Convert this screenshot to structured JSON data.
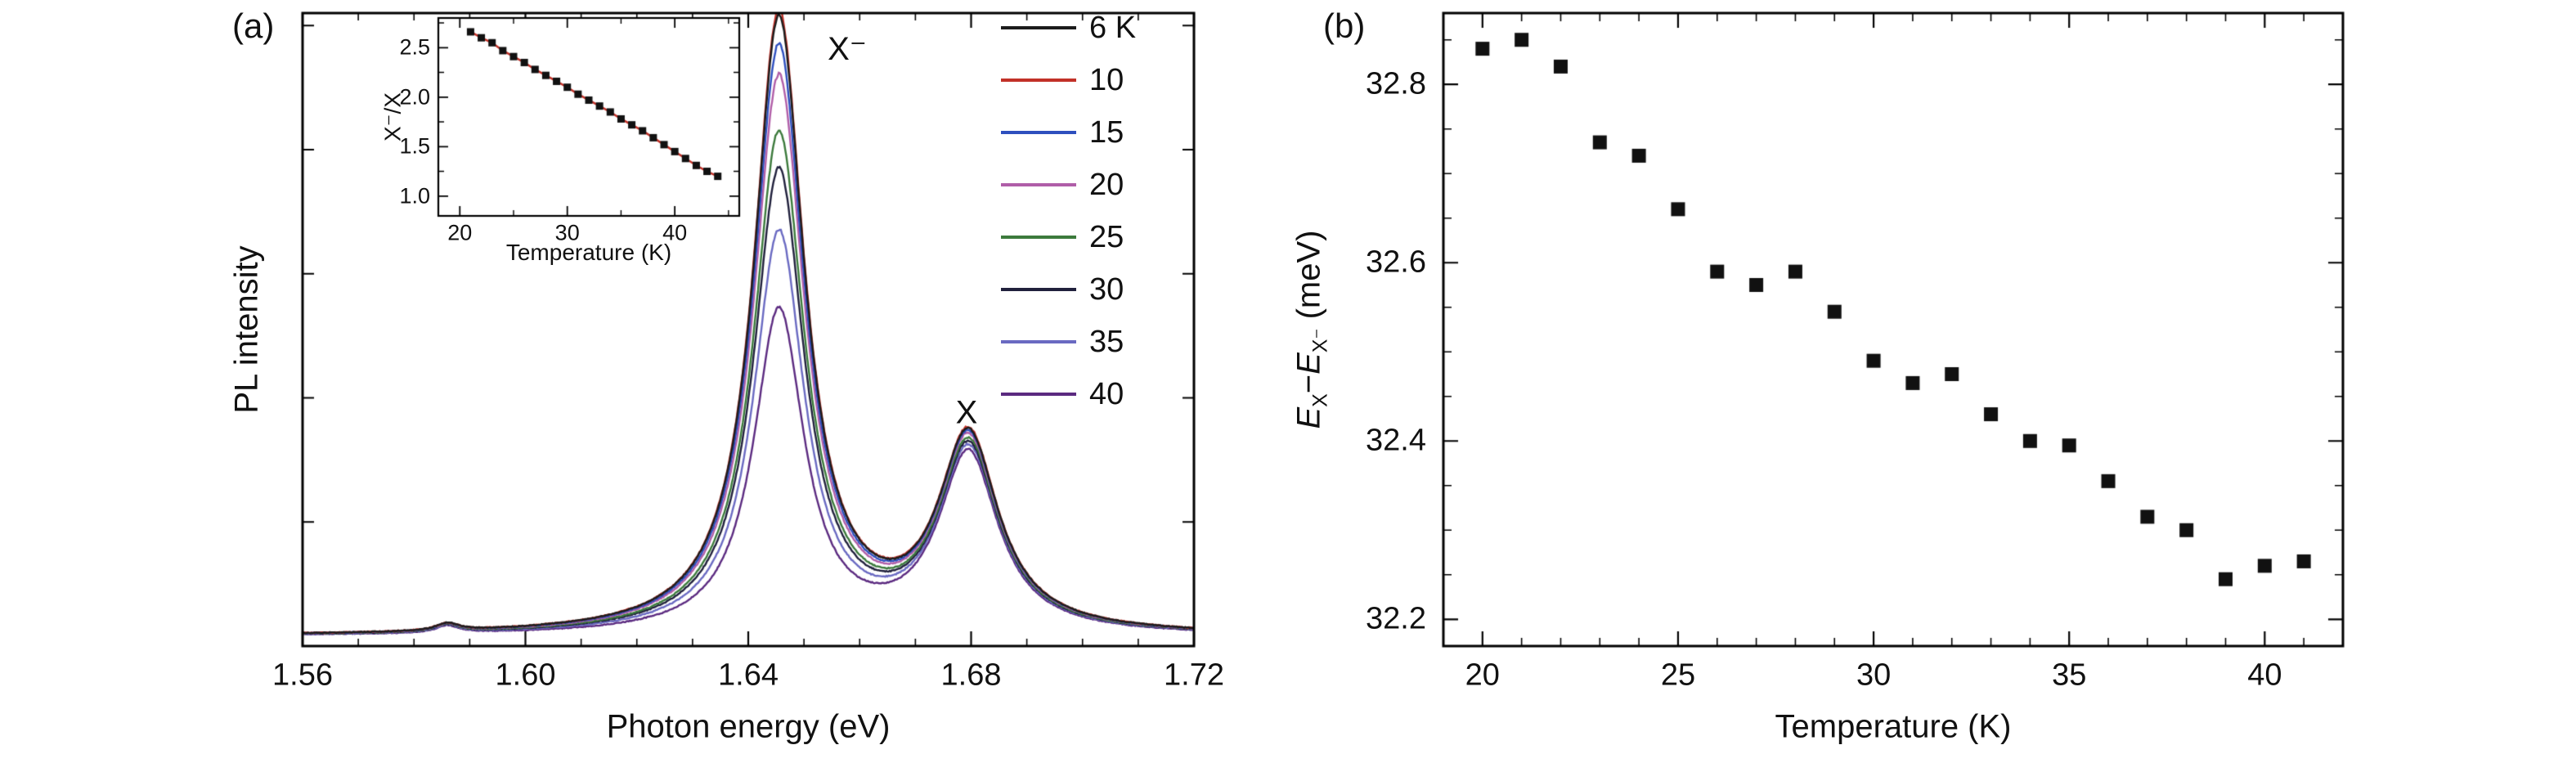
{
  "figure": {
    "panel_a": {
      "label": "(a)"
    },
    "panel_b": {
      "label": "(b)",
      "ylabel_e1": "E",
      "ylabel_sub1": "X",
      "ylabel_minus": "−",
      "ylabel_e2": "E",
      "ylabel_sub2": "X⁻",
      "ylabel_unit": " (meV)"
    }
  },
  "chart_data": [
    {
      "id": "panel-a-spectra",
      "type": "line",
      "title": "",
      "xlabel": "Photon energy (eV)",
      "ylabel": "PL intensity",
      "xlim": [
        1.56,
        1.72
      ],
      "ylim": [
        0,
        1.02
      ],
      "x_ticks": [
        1.56,
        1.6,
        1.64,
        1.68,
        1.72
      ],
      "x_tick_labels": [
        "1.56",
        "1.60",
        "1.64",
        "1.68",
        "1.72"
      ],
      "grid": false,
      "legend_position": "top-right",
      "annotations": [
        {
          "text": "X⁻",
          "x": 1.653,
          "y": 1.0
        },
        {
          "text": "X",
          "x": 1.6795,
          "y": 0.38
        }
      ],
      "peak_model": {
        "trion_center_eV": 1.6455,
        "trion_hwhm_eV": 0.0055,
        "exciton_center_eV": 1.6795,
        "exciton_hwhm_eV": 0.0065,
        "minor_center_eV": 1.586,
        "minor_hwhm_eV": 0.0025,
        "minor_amp": 0.012,
        "baseline": 0.016
      },
      "series": [
        {
          "name": "6 K",
          "color": "#1c1c1c",
          "trion_amp": 0.99,
          "exciton_amp": 0.31
        },
        {
          "name": "10",
          "color": "#c23128",
          "trion_amp": 1.0,
          "exciton_amp": 0.312
        },
        {
          "name": "15",
          "color": "#2e4fbe",
          "trion_amp": 0.945,
          "exciton_amp": 0.308
        },
        {
          "name": "20",
          "color": "#b05ea8",
          "trion_amp": 0.895,
          "exciton_amp": 0.305
        },
        {
          "name": "25",
          "color": "#3c7a3c",
          "trion_amp": 0.805,
          "exciton_amp": 0.3
        },
        {
          "name": "30",
          "color": "#20203c",
          "trion_amp": 0.745,
          "exciton_amp": 0.296
        },
        {
          "name": "35",
          "color": "#6a6ac2",
          "trion_amp": 0.645,
          "exciton_amp": 0.293
        },
        {
          "name": "40",
          "color": "#5b2a80",
          "trion_amp": 0.52,
          "exciton_amp": 0.288
        }
      ]
    },
    {
      "id": "panel-a-inset",
      "type": "scatter-line",
      "xlabel": "Temperature (K)",
      "ylabel": "X⁻/X",
      "xlim": [
        18,
        46
      ],
      "ylim": [
        0.8,
        2.8
      ],
      "x_ticks": [
        20,
        30,
        40
      ],
      "x_tick_labels": [
        "20",
        "30",
        "40"
      ],
      "y_ticks": [
        1.0,
        1.5,
        2.0,
        2.5
      ],
      "y_tick_labels": [
        "1.0",
        "1.5",
        "2.0",
        "2.5"
      ],
      "marker": "square",
      "marker_color": "#111111",
      "line_color": "#c23128",
      "x": [
        21,
        22,
        23,
        24,
        25,
        26,
        27,
        28,
        29,
        30,
        31,
        32,
        33,
        34,
        35,
        36,
        37,
        38,
        39,
        40,
        41,
        42,
        43,
        44
      ],
      "y": [
        2.66,
        2.6,
        2.55,
        2.47,
        2.41,
        2.35,
        2.28,
        2.22,
        2.16,
        2.1,
        2.03,
        1.97,
        1.91,
        1.85,
        1.78,
        1.72,
        1.66,
        1.59,
        1.52,
        1.45,
        1.38,
        1.31,
        1.25,
        1.2
      ]
    },
    {
      "id": "panel-b",
      "type": "scatter",
      "xlabel": "Temperature (K)",
      "ylabel": "E_X−E_X⁻ (meV)",
      "xlim": [
        19,
        42
      ],
      "ylim": [
        32.17,
        32.88
      ],
      "x_ticks": [
        20,
        25,
        30,
        35,
        40
      ],
      "x_tick_labels": [
        "20",
        "25",
        "30",
        "35",
        "40"
      ],
      "y_ticks": [
        32.2,
        32.4,
        32.6,
        32.8
      ],
      "y_tick_labels": [
        "32.2",
        "32.4",
        "32.6",
        "32.8"
      ],
      "marker": "square",
      "marker_color": "#111111",
      "x": [
        20,
        21,
        22,
        23,
        24,
        25,
        26,
        27,
        28,
        29,
        30,
        31,
        32,
        33,
        34,
        35,
        36,
        37,
        38,
        39,
        40,
        41
      ],
      "y": [
        32.84,
        32.85,
        32.82,
        32.735,
        32.72,
        32.66,
        32.59,
        32.575,
        32.59,
        32.545,
        32.49,
        32.465,
        32.475,
        32.43,
        32.4,
        32.395,
        32.355,
        32.315,
        32.3,
        32.245,
        32.26,
        32.265
      ]
    }
  ]
}
